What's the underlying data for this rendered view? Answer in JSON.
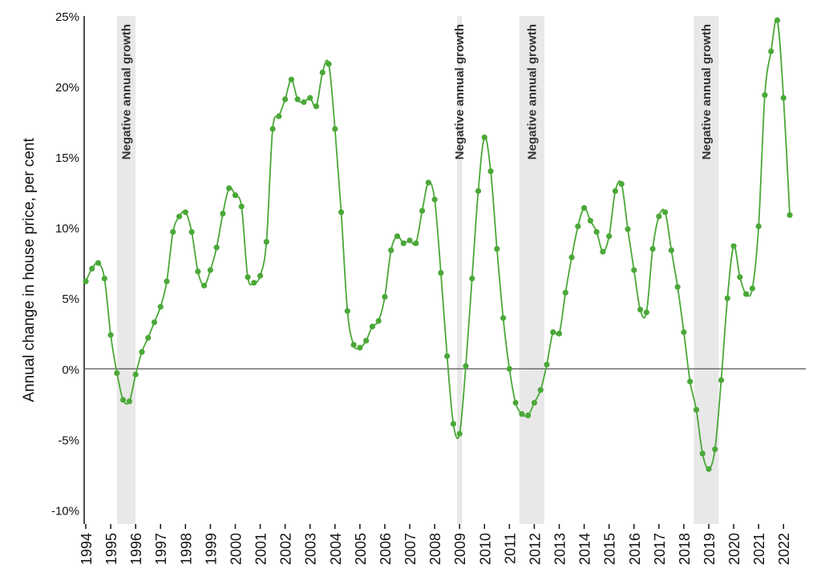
{
  "chart_data": {
    "type": "line",
    "title": "",
    "xlabel": "",
    "ylabel": "Annual change in house price, per cent",
    "xlim": [
      1994.0,
      2022.55
    ],
    "ylim": [
      -11,
      25
    ],
    "y_ticks": [
      25,
      20,
      15,
      10,
      5,
      0,
      -5,
      -10
    ],
    "y_tick_labels": [
      "25%",
      "20%",
      "15%",
      "10%",
      "5%",
      "0%",
      "-5%",
      "-10%"
    ],
    "x_ticks": [
      1994,
      1995,
      1996,
      1997,
      1998,
      1999,
      2000,
      2001,
      2002,
      2003,
      2004,
      2005,
      2006,
      2007,
      2008,
      2009,
      2010,
      2011,
      2012,
      2013,
      2014,
      2015,
      2016,
      2017,
      2018,
      2019,
      2020,
      2021,
      2022
    ],
    "x_tick_labels": [
      "1994",
      "1995",
      "1996",
      "1997",
      "1998",
      "1999",
      "2000",
      "2001",
      "2002",
      "2003",
      "2004",
      "2005",
      "2006",
      "2007",
      "2008",
      "2009",
      "2010",
      "2011",
      "2012",
      "2013",
      "2014",
      "2015",
      "2016",
      "2017",
      "2018",
      "2019",
      "2020",
      "2021",
      "2022"
    ],
    "grid": false,
    "legend": "none",
    "zero_line": true,
    "shaded_regions": [
      {
        "label": "Negative annual growth",
        "x0": 1995.25,
        "x1": 1996.0
      },
      {
        "label": "Negative annual growth",
        "x0": 2008.9,
        "x1": 2009.1
      },
      {
        "label": "Negative annual growth",
        "x0": 2011.4,
        "x1": 2012.4
      },
      {
        "label": "Negative annual growth",
        "x0": 2018.4,
        "x1": 2019.4
      }
    ],
    "series": [
      {
        "color": "#4aa838",
        "x": [
          1994.0,
          1994.25,
          1994.5,
          1994.75,
          1995.0,
          1995.25,
          1995.5,
          1995.75,
          1996.0,
          1996.25,
          1996.5,
          1996.75,
          1997.0,
          1997.25,
          1997.5,
          1997.75,
          1998.0,
          1998.25,
          1998.5,
          1998.75,
          1999.0,
          1999.25,
          1999.5,
          1999.75,
          2000.0,
          2000.25,
          2000.5,
          2000.75,
          2001.0,
          2001.25,
          2001.5,
          2001.75,
          2002.0,
          2002.25,
          2002.5,
          2002.75,
          2003.0,
          2003.25,
          2003.5,
          2003.75,
          2004.0,
          2004.25,
          2004.5,
          2004.75,
          2005.0,
          2005.25,
          2005.5,
          2005.75,
          2006.0,
          2006.25,
          2006.5,
          2006.75,
          2007.0,
          2007.25,
          2007.5,
          2007.75,
          2008.0,
          2008.25,
          2008.5,
          2008.75,
          2009.0,
          2009.25,
          2009.5,
          2009.75,
          2010.0,
          2010.25,
          2010.5,
          2010.75,
          2011.0,
          2011.25,
          2011.5,
          2011.75,
          2012.0,
          2012.25,
          2012.5,
          2012.75,
          2013.0,
          2013.25,
          2013.5,
          2013.75,
          2014.0,
          2014.25,
          2014.5,
          2014.75,
          2015.0,
          2015.25,
          2015.5,
          2015.75,
          2016.0,
          2016.25,
          2016.5,
          2016.75,
          2017.0,
          2017.25,
          2017.5,
          2017.75,
          2018.0,
          2018.25,
          2018.5,
          2018.75,
          2019.0,
          2019.25,
          2019.5,
          2019.75,
          2020.0,
          2020.25,
          2020.5,
          2020.75,
          2021.0,
          2021.25,
          2021.5,
          2021.75,
          2022.0,
          2022.25
        ],
        "y": [
          6.2,
          7.1,
          7.5,
          6.4,
          2.4,
          -0.3,
          -2.2,
          -2.3,
          -0.4,
          1.2,
          2.2,
          3.3,
          4.4,
          6.2,
          9.7,
          10.8,
          11.1,
          9.7,
          6.9,
          5.9,
          7.0,
          8.6,
          11.0,
          12.8,
          12.3,
          11.5,
          6.5,
          6.1,
          6.6,
          9.0,
          17.0,
          17.9,
          19.1,
          20.5,
          19.1,
          18.9,
          19.2,
          18.6,
          21.0,
          21.6,
          17.0,
          11.1,
          4.1,
          1.7,
          1.5,
          2.0,
          3.0,
          3.4,
          5.1,
          8.4,
          9.4,
          8.9,
          9.1,
          8.9,
          11.2,
          13.2,
          12.0,
          6.8,
          0.9,
          -3.9,
          -4.6,
          0.2,
          6.4,
          12.6,
          16.4,
          14.0,
          8.5,
          3.6,
          0.0,
          -2.4,
          -3.2,
          -3.3,
          -2.4,
          -1.5,
          0.3,
          2.6,
          2.5,
          5.4,
          7.9,
          10.1,
          11.4,
          10.5,
          9.7,
          8.3,
          9.4,
          12.6,
          13.1,
          9.9,
          7.0,
          4.2,
          4.0,
          8.5,
          10.8,
          11.1,
          8.4,
          5.8,
          2.6,
          -0.9,
          -2.9,
          -6.0,
          -7.1,
          -5.7,
          -0.8,
          5.0,
          8.7,
          6.5,
          5.3,
          5.7,
          10.1,
          19.4,
          22.5,
          24.7,
          19.2,
          10.9
        ]
      }
    ]
  }
}
